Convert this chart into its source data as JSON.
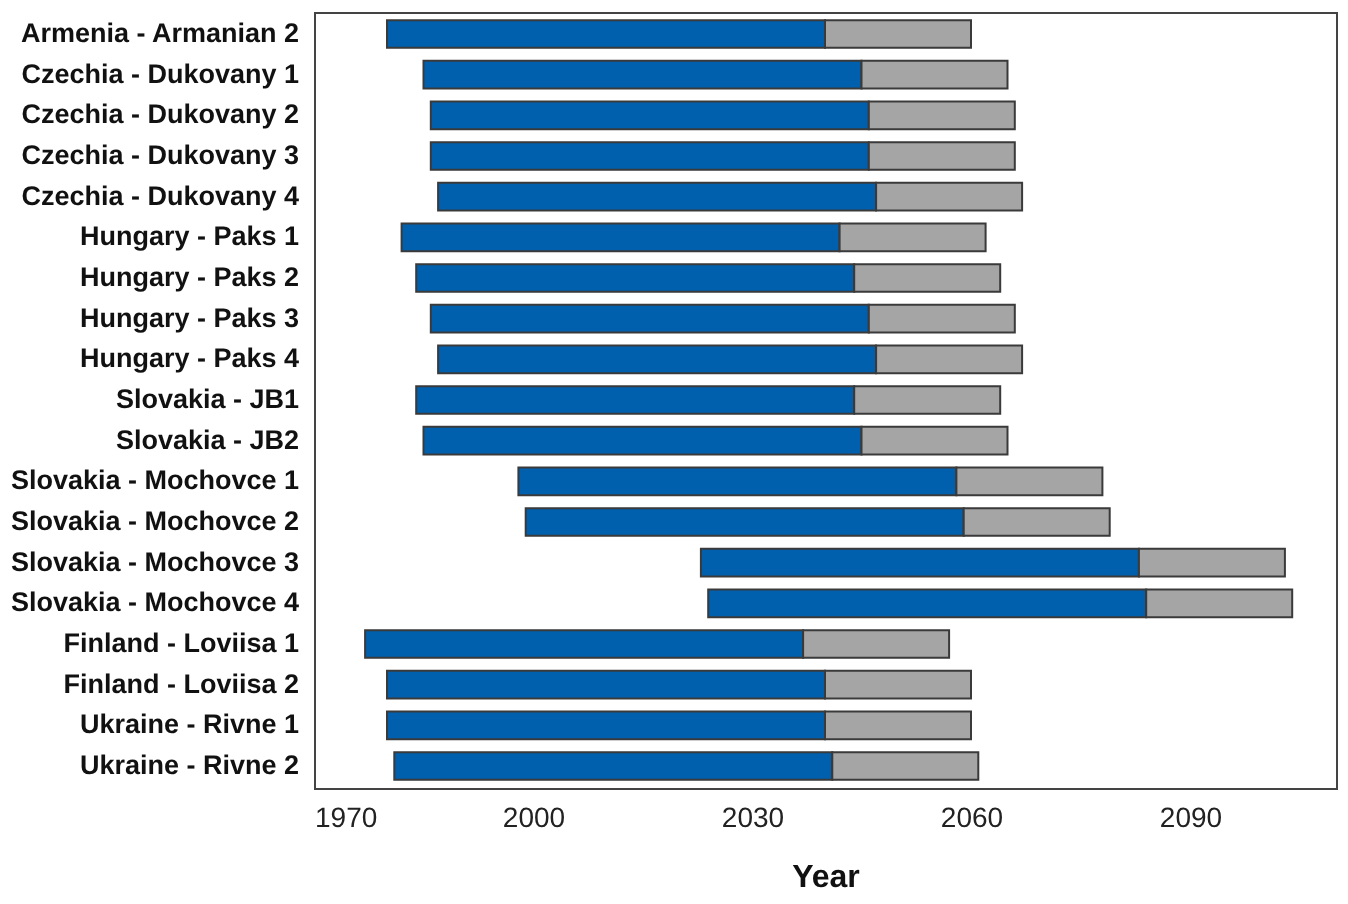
{
  "chart_data": {
    "type": "bar",
    "orientation": "horizontal",
    "xlabel": "Year",
    "categories": [
      "Armenia - Armanian 2",
      "Czechia - Dukovany 1",
      "Czechia - Dukovany 2",
      "Czechia - Dukovany 3",
      "Czechia - Dukovany 4",
      "Hungary - Paks 1",
      "Hungary - Paks 2",
      "Hungary - Paks 3",
      "Hungary - Paks 4",
      "Slovakia - JB1",
      "Slovakia - JB2",
      "Slovakia - Mochovce 1",
      "Slovakia - Mochovce 2",
      "Slovakia - Mochovce 3",
      "Slovakia - Mochovce 4",
      "Finland - Loviisa 1",
      "Finland - Loviisa 2",
      "Ukraine - Rivne 1",
      "Ukraine - Rivne 2"
    ],
    "series": [
      {
        "color": "#0060ae",
        "base": [
          1980,
          1985,
          1986,
          1986,
          1987,
          1982,
          1984,
          1986,
          1987,
          1984,
          1985,
          1998,
          1999,
          2023,
          2024,
          1977,
          1980,
          1980,
          1981
        ],
        "values": [
          60,
          60,
          60,
          60,
          60,
          60,
          60,
          60,
          60,
          60,
          60,
          60,
          60,
          60,
          60,
          60,
          60,
          60,
          60
        ]
      },
      {
        "color": "#a5a5a5",
        "base": [
          2040,
          2045,
          2046,
          2046,
          2047,
          2042,
          2044,
          2046,
          2047,
          2044,
          2045,
          2058,
          2059,
          2083,
          2084,
          2037,
          2040,
          2040,
          2041
        ],
        "values": [
          20,
          20,
          20,
          20,
          20,
          20,
          20,
          20,
          20,
          20,
          20,
          20,
          20,
          20,
          20,
          20,
          20,
          20,
          20
        ]
      }
    ],
    "xlim": [
      1970,
      2110
    ],
    "xticks": [
      1970,
      2000,
      2030,
      2060,
      2090
    ]
  }
}
